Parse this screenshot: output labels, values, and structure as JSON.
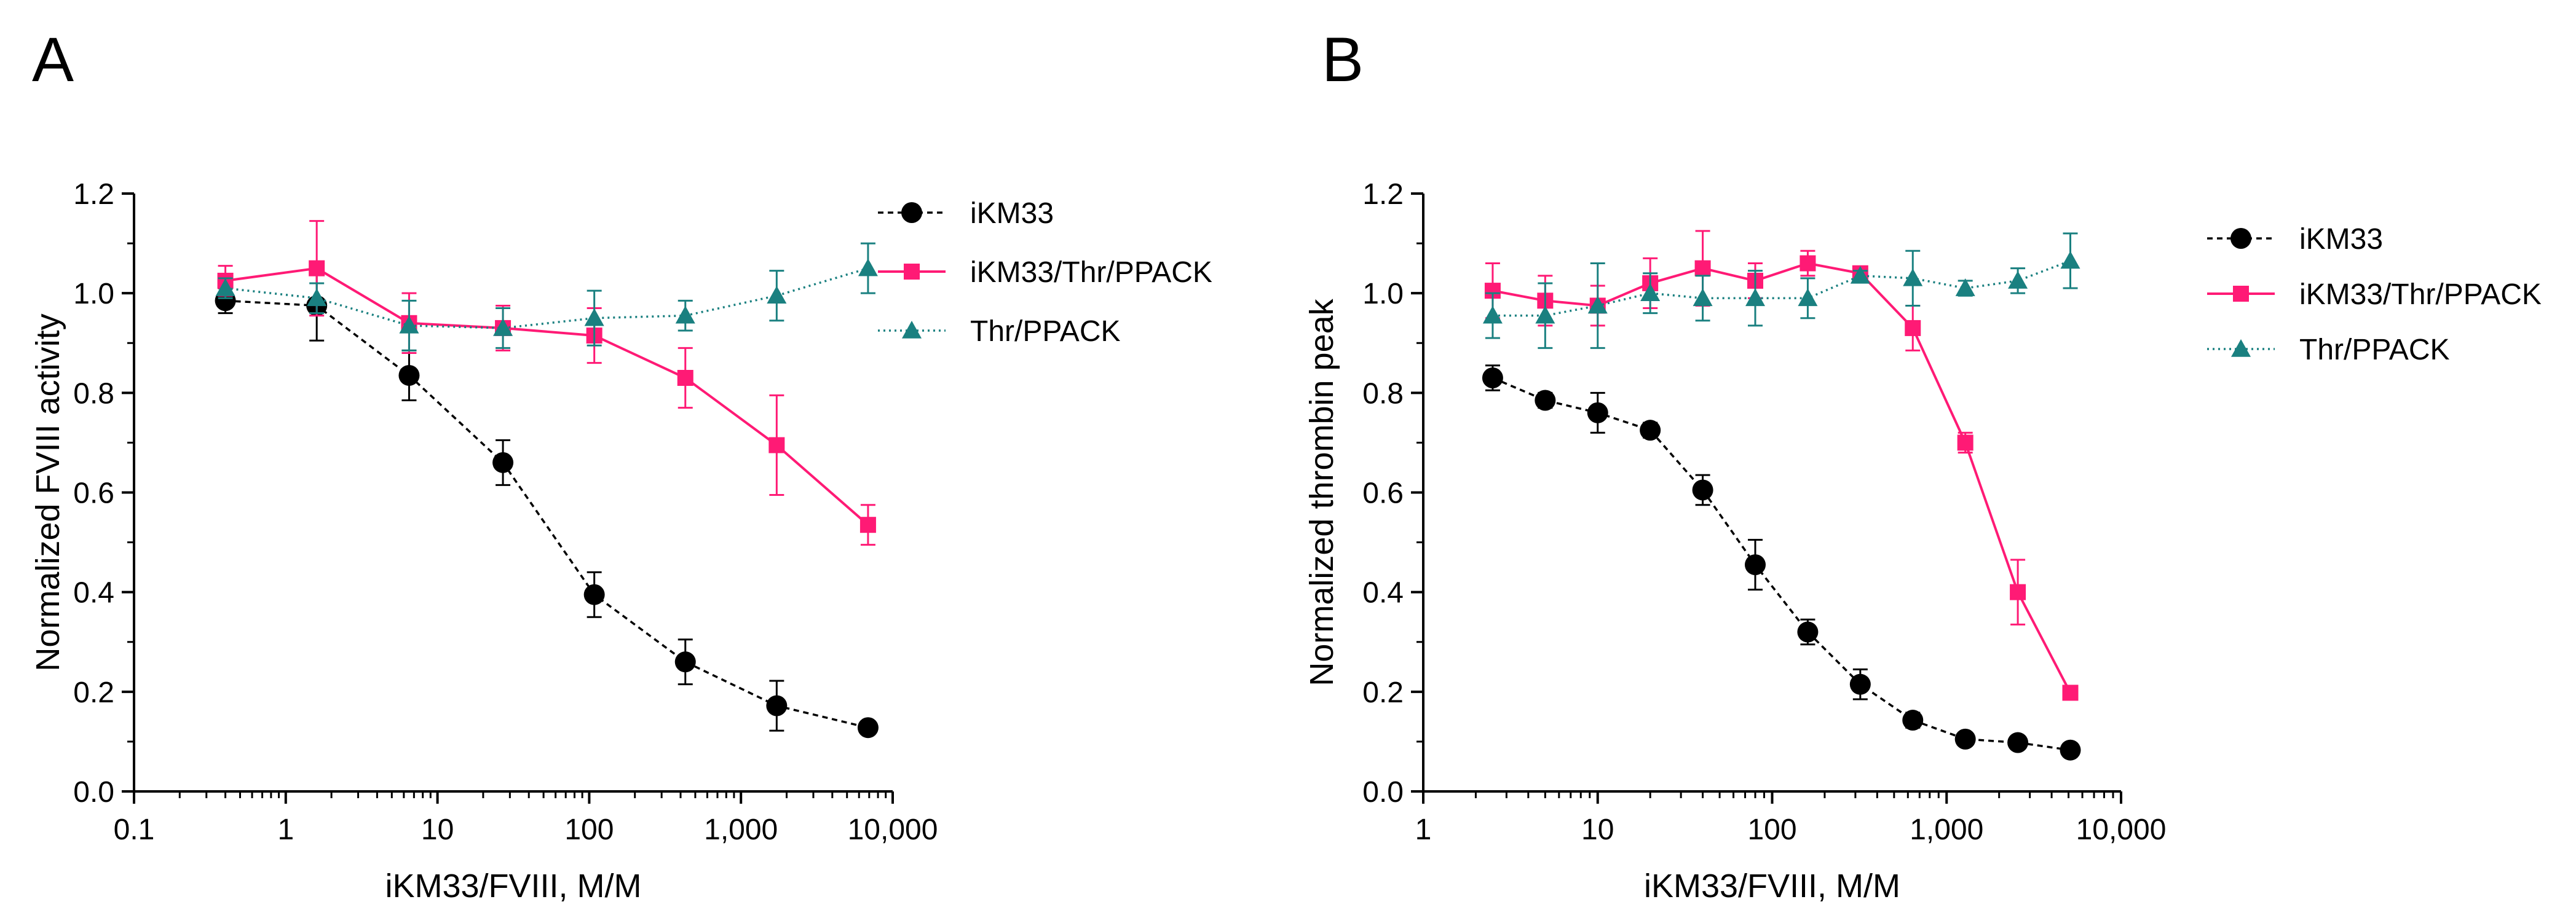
{
  "chart_data": [
    {
      "panel": "A",
      "type": "line",
      "xscale": "log",
      "xlim": [
        0.1,
        10000
      ],
      "ylim": [
        0,
        1.2
      ],
      "xlabel": "iKM33/FVIII, M/M",
      "ylabel": "Normalized FVIII activity",
      "xtick_values": [
        0.1,
        1,
        10,
        100,
        1000,
        10000
      ],
      "xtick_labels": [
        "0.1",
        "1",
        "10",
        "100",
        "1,000",
        "10,000"
      ],
      "ytick_values": [
        0,
        0.2,
        0.4,
        0.6,
        0.8,
        1.0,
        1.2
      ],
      "ytick_labels": [
        "0.0",
        "0.2",
        "0.4",
        "0.6",
        "0.8",
        "1.0",
        "1.2"
      ],
      "legend_position": "right",
      "series": [
        {
          "name": "iKM33",
          "color": "#000000",
          "marker": "circle",
          "line": "dashed",
          "x": [
            0.4,
            1.6,
            6.5,
            27,
            108,
            430,
            1720,
            6880
          ],
          "y": [
            0.985,
            0.975,
            0.835,
            0.66,
            0.395,
            0.26,
            0.172,
            0.128
          ],
          "err": [
            0.025,
            0.07,
            0.05,
            0.045,
            0.045,
            0.045,
            0.05,
            0.01
          ]
        },
        {
          "name": "iKM33/Thr/PPACK",
          "color": "#ff1a75",
          "marker": "square",
          "line": "solid",
          "x": [
            0.4,
            1.6,
            6.5,
            27,
            108,
            430,
            1720,
            6880
          ],
          "y": [
            1.025,
            1.05,
            0.94,
            0.93,
            0.915,
            0.83,
            0.695,
            0.535
          ],
          "err": [
            0.03,
            0.095,
            0.06,
            0.045,
            0.055,
            0.06,
            0.1,
            0.04
          ]
        },
        {
          "name": "Thr/PPACK",
          "color": "#1a8080",
          "marker": "triangle",
          "line": "dotted",
          "x": [
            0.4,
            1.6,
            6.5,
            27,
            108,
            430,
            1720,
            6880
          ],
          "y": [
            1.01,
            0.99,
            0.935,
            0.93,
            0.95,
            0.955,
            0.995,
            1.05
          ],
          "err": [
            0.02,
            0.03,
            0.05,
            0.04,
            0.055,
            0.03,
            0.05,
            0.05
          ]
        }
      ]
    },
    {
      "panel": "B",
      "type": "line",
      "xscale": "log",
      "xlim": [
        1,
        10000
      ],
      "ylim": [
        0,
        1.2
      ],
      "xlabel": "iKM33/FVIII, M/M",
      "ylabel": "Normalized thrombin peak",
      "xtick_values": [
        1,
        10,
        100,
        1000,
        10000
      ],
      "xtick_labels": [
        "1",
        "10",
        "100",
        "1,000",
        "10,000"
      ],
      "ytick_values": [
        0,
        0.2,
        0.4,
        0.6,
        0.8,
        1.0,
        1.2
      ],
      "ytick_labels": [
        "0.0",
        "0.2",
        "0.4",
        "0.6",
        "0.8",
        "1.0",
        "1.2"
      ],
      "legend_position": "right",
      "series": [
        {
          "name": "iKM33",
          "color": "#000000",
          "marker": "circle",
          "line": "dashed",
          "x": [
            2.5,
            5,
            10,
            20,
            40,
            80,
            160,
            320,
            640,
            1280,
            2560,
            5120
          ],
          "y": [
            0.83,
            0.785,
            0.76,
            0.725,
            0.605,
            0.455,
            0.32,
            0.215,
            0.143,
            0.105,
            0.098,
            0.083
          ],
          "err": [
            0.025,
            0.015,
            0.04,
            0.015,
            0.03,
            0.05,
            0.025,
            0.03,
            0.015,
            0.01,
            0.01,
            0.01
          ]
        },
        {
          "name": "iKM33/Thr/PPACK",
          "color": "#ff1a75",
          "marker": "square",
          "line": "solid",
          "x": [
            2.5,
            5,
            10,
            20,
            40,
            80,
            160,
            320,
            640,
            1280,
            2560,
            5120
          ],
          "y": [
            1.005,
            0.985,
            0.975,
            1.02,
            1.05,
            1.025,
            1.06,
            1.04,
            0.93,
            0.7,
            0.4,
            0.198
          ],
          "err": [
            0.055,
            0.05,
            0.04,
            0.05,
            0.075,
            0.035,
            0.025,
            0.01,
            0.045,
            0.02,
            0.065,
            0.01
          ]
        },
        {
          "name": "Thr/PPACK",
          "color": "#1a8080",
          "marker": "triangle",
          "line": "dotted",
          "x": [
            2.5,
            5,
            10,
            20,
            40,
            80,
            160,
            320,
            640,
            1280,
            2560,
            5120
          ],
          "y": [
            0.955,
            0.955,
            0.975,
            1.0,
            0.99,
            0.99,
            0.99,
            1.035,
            1.03,
            1.01,
            1.025,
            1.065
          ],
          "err": [
            0.045,
            0.065,
            0.085,
            0.04,
            0.045,
            0.055,
            0.04,
            0.01,
            0.055,
            0.015,
            0.025,
            0.055
          ]
        }
      ]
    }
  ]
}
